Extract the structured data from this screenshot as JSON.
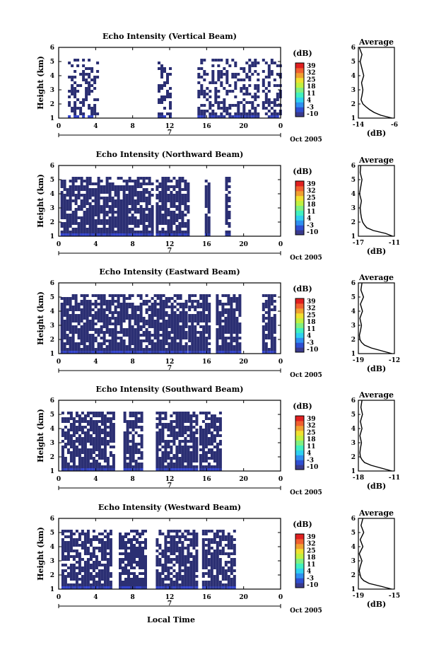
{
  "time_axis_label": "Local Time",
  "date_label": "Oct 2005",
  "day_marker": "7",
  "ylabel": "Height (km)",
  "avg_title": "Average",
  "avg_xlabel": "(dB)",
  "colorbar": {
    "unit": "(dB)",
    "ticks": [
      "39",
      "32",
      "25",
      "18",
      "11",
      "4",
      "-3",
      "-10"
    ],
    "colors": [
      "#3a3a8c",
      "#2f4fd1",
      "#2f8ff0",
      "#2fd0f0",
      "#40f0c0",
      "#80f080",
      "#c0f040",
      "#f0e030",
      "#f0a030",
      "#f06030",
      "#e02020"
    ]
  },
  "panels": [
    {
      "title": "Echo Intensity (Vertical Beam)",
      "avg_xticks": [
        "-14",
        "-6"
      ]
    },
    {
      "title": "Echo Intensity (Northward Beam)",
      "avg_xticks": [
        "-17",
        "-11"
      ]
    },
    {
      "title": "Echo Intensity (Eastward Beam)",
      "avg_xticks": [
        "-19",
        "-12"
      ]
    },
    {
      "title": "Echo Intensity (Southward Beam)",
      "avg_xticks": [
        "-18",
        "-11"
      ]
    },
    {
      "title": "Echo Intensity (Westward Beam)",
      "avg_xticks": [
        "-19",
        "-15"
      ]
    }
  ],
  "chart_data": {
    "type": "heatmap",
    "x_ticks": [
      "0",
      "4",
      "8",
      "12",
      "16",
      "20",
      "0"
    ],
    "x_range_hours": [
      0,
      24
    ],
    "y_ticks": [
      "1",
      "2",
      "3",
      "4",
      "5",
      "6"
    ],
    "y_range_km": [
      1,
      6
    ],
    "color_range_db": [
      -10,
      39
    ],
    "panels": [
      {
        "name": "Vertical Beam",
        "segments": [
          [
            1.0,
            4.3
          ],
          [
            10.7,
            12.0
          ],
          [
            15.0,
            21.5
          ],
          [
            22.0,
            24.0
          ]
        ],
        "fill_density": 0.45,
        "avg_profile": {
          "xlim": [
            -14,
            -6
          ],
          "heights": [
            1.0,
            1.2,
            1.4,
            1.6,
            1.8,
            2.0,
            2.3,
            2.6,
            3.0,
            3.5,
            4.0,
            4.5,
            5.0,
            5.5,
            6.0
          ],
          "values": [
            -6.5,
            -9.0,
            -10.5,
            -11.5,
            -12.3,
            -13.0,
            -13.4,
            -13.2,
            -13.0,
            -13.3,
            -12.8,
            -13.2,
            -13.6,
            -13.2,
            -13.8
          ]
        }
      },
      {
        "name": "Northward Beam",
        "segments": [
          [
            0.2,
            10.0
          ],
          [
            10.5,
            14.0
          ],
          [
            15.8,
            16.4
          ],
          [
            18.0,
            18.5
          ]
        ],
        "fill_density": 0.82,
        "avg_profile": {
          "xlim": [
            -17,
            -11
          ],
          "heights": [
            1.0,
            1.2,
            1.4,
            1.6,
            1.8,
            2.0,
            2.3,
            2.6,
            3.0,
            3.5,
            4.0,
            4.5,
            5.0,
            5.5,
            6.0
          ],
          "values": [
            -11.3,
            -12.5,
            -14.5,
            -15.6,
            -16.0,
            -16.3,
            -16.5,
            -16.6,
            -16.7,
            -16.5,
            -16.8,
            -16.6,
            -16.4,
            -16.7,
            -16.6
          ]
        }
      },
      {
        "name": "Eastward Beam",
        "segments": [
          [
            0.2,
            13.8
          ],
          [
            14.0,
            16.3
          ],
          [
            17.0,
            19.5
          ],
          [
            22.0,
            23.5
          ]
        ],
        "fill_density": 0.85,
        "avg_profile": {
          "xlim": [
            -19,
            -12
          ],
          "heights": [
            1.0,
            1.2,
            1.4,
            1.6,
            1.8,
            2.0,
            2.3,
            2.6,
            3.0,
            3.5,
            4.0,
            4.5,
            5.0,
            5.5,
            6.0
          ],
          "values": [
            -12.5,
            -14.5,
            -16.5,
            -17.8,
            -18.4,
            -18.7,
            -18.8,
            -18.6,
            -18.4,
            -18.7,
            -18.2,
            -18.6,
            -18.0,
            -18.5,
            -18.3
          ]
        }
      },
      {
        "name": "Southward Beam",
        "segments": [
          [
            0.3,
            6.0
          ],
          [
            7.0,
            9.0
          ],
          [
            10.5,
            15.0
          ],
          [
            15.2,
            17.5
          ]
        ],
        "fill_density": 0.8,
        "avg_profile": {
          "xlim": [
            -18,
            -11
          ],
          "heights": [
            1.0,
            1.2,
            1.4,
            1.6,
            1.8,
            2.0,
            2.3,
            2.6,
            3.0,
            3.5,
            4.0,
            4.5,
            5.0,
            5.5,
            6.0
          ],
          "values": [
            -11.5,
            -13.5,
            -15.5,
            -16.8,
            -17.3,
            -17.6,
            -17.7,
            -17.6,
            -17.4,
            -17.7,
            -17.3,
            -17.6,
            -17.2,
            -17.5,
            -17.3
          ]
        }
      },
      {
        "name": "Westward Beam",
        "segments": [
          [
            0.3,
            5.5
          ],
          [
            6.5,
            9.5
          ],
          [
            10.5,
            15.0
          ],
          [
            15.5,
            19.0
          ]
        ],
        "fill_density": 0.78,
        "avg_profile": {
          "xlim": [
            -19,
            -15
          ],
          "heights": [
            1.0,
            1.2,
            1.4,
            1.6,
            1.8,
            2.0,
            2.3,
            2.6,
            3.0,
            3.5,
            4.0,
            4.5,
            5.0,
            5.5,
            6.0
          ],
          "values": [
            -15.3,
            -16.5,
            -17.8,
            -18.4,
            -18.7,
            -18.8,
            -18.9,
            -18.8,
            -18.6,
            -18.9,
            -18.5,
            -18.8,
            -18.4,
            -18.7,
            -18.5
          ]
        }
      }
    ]
  }
}
